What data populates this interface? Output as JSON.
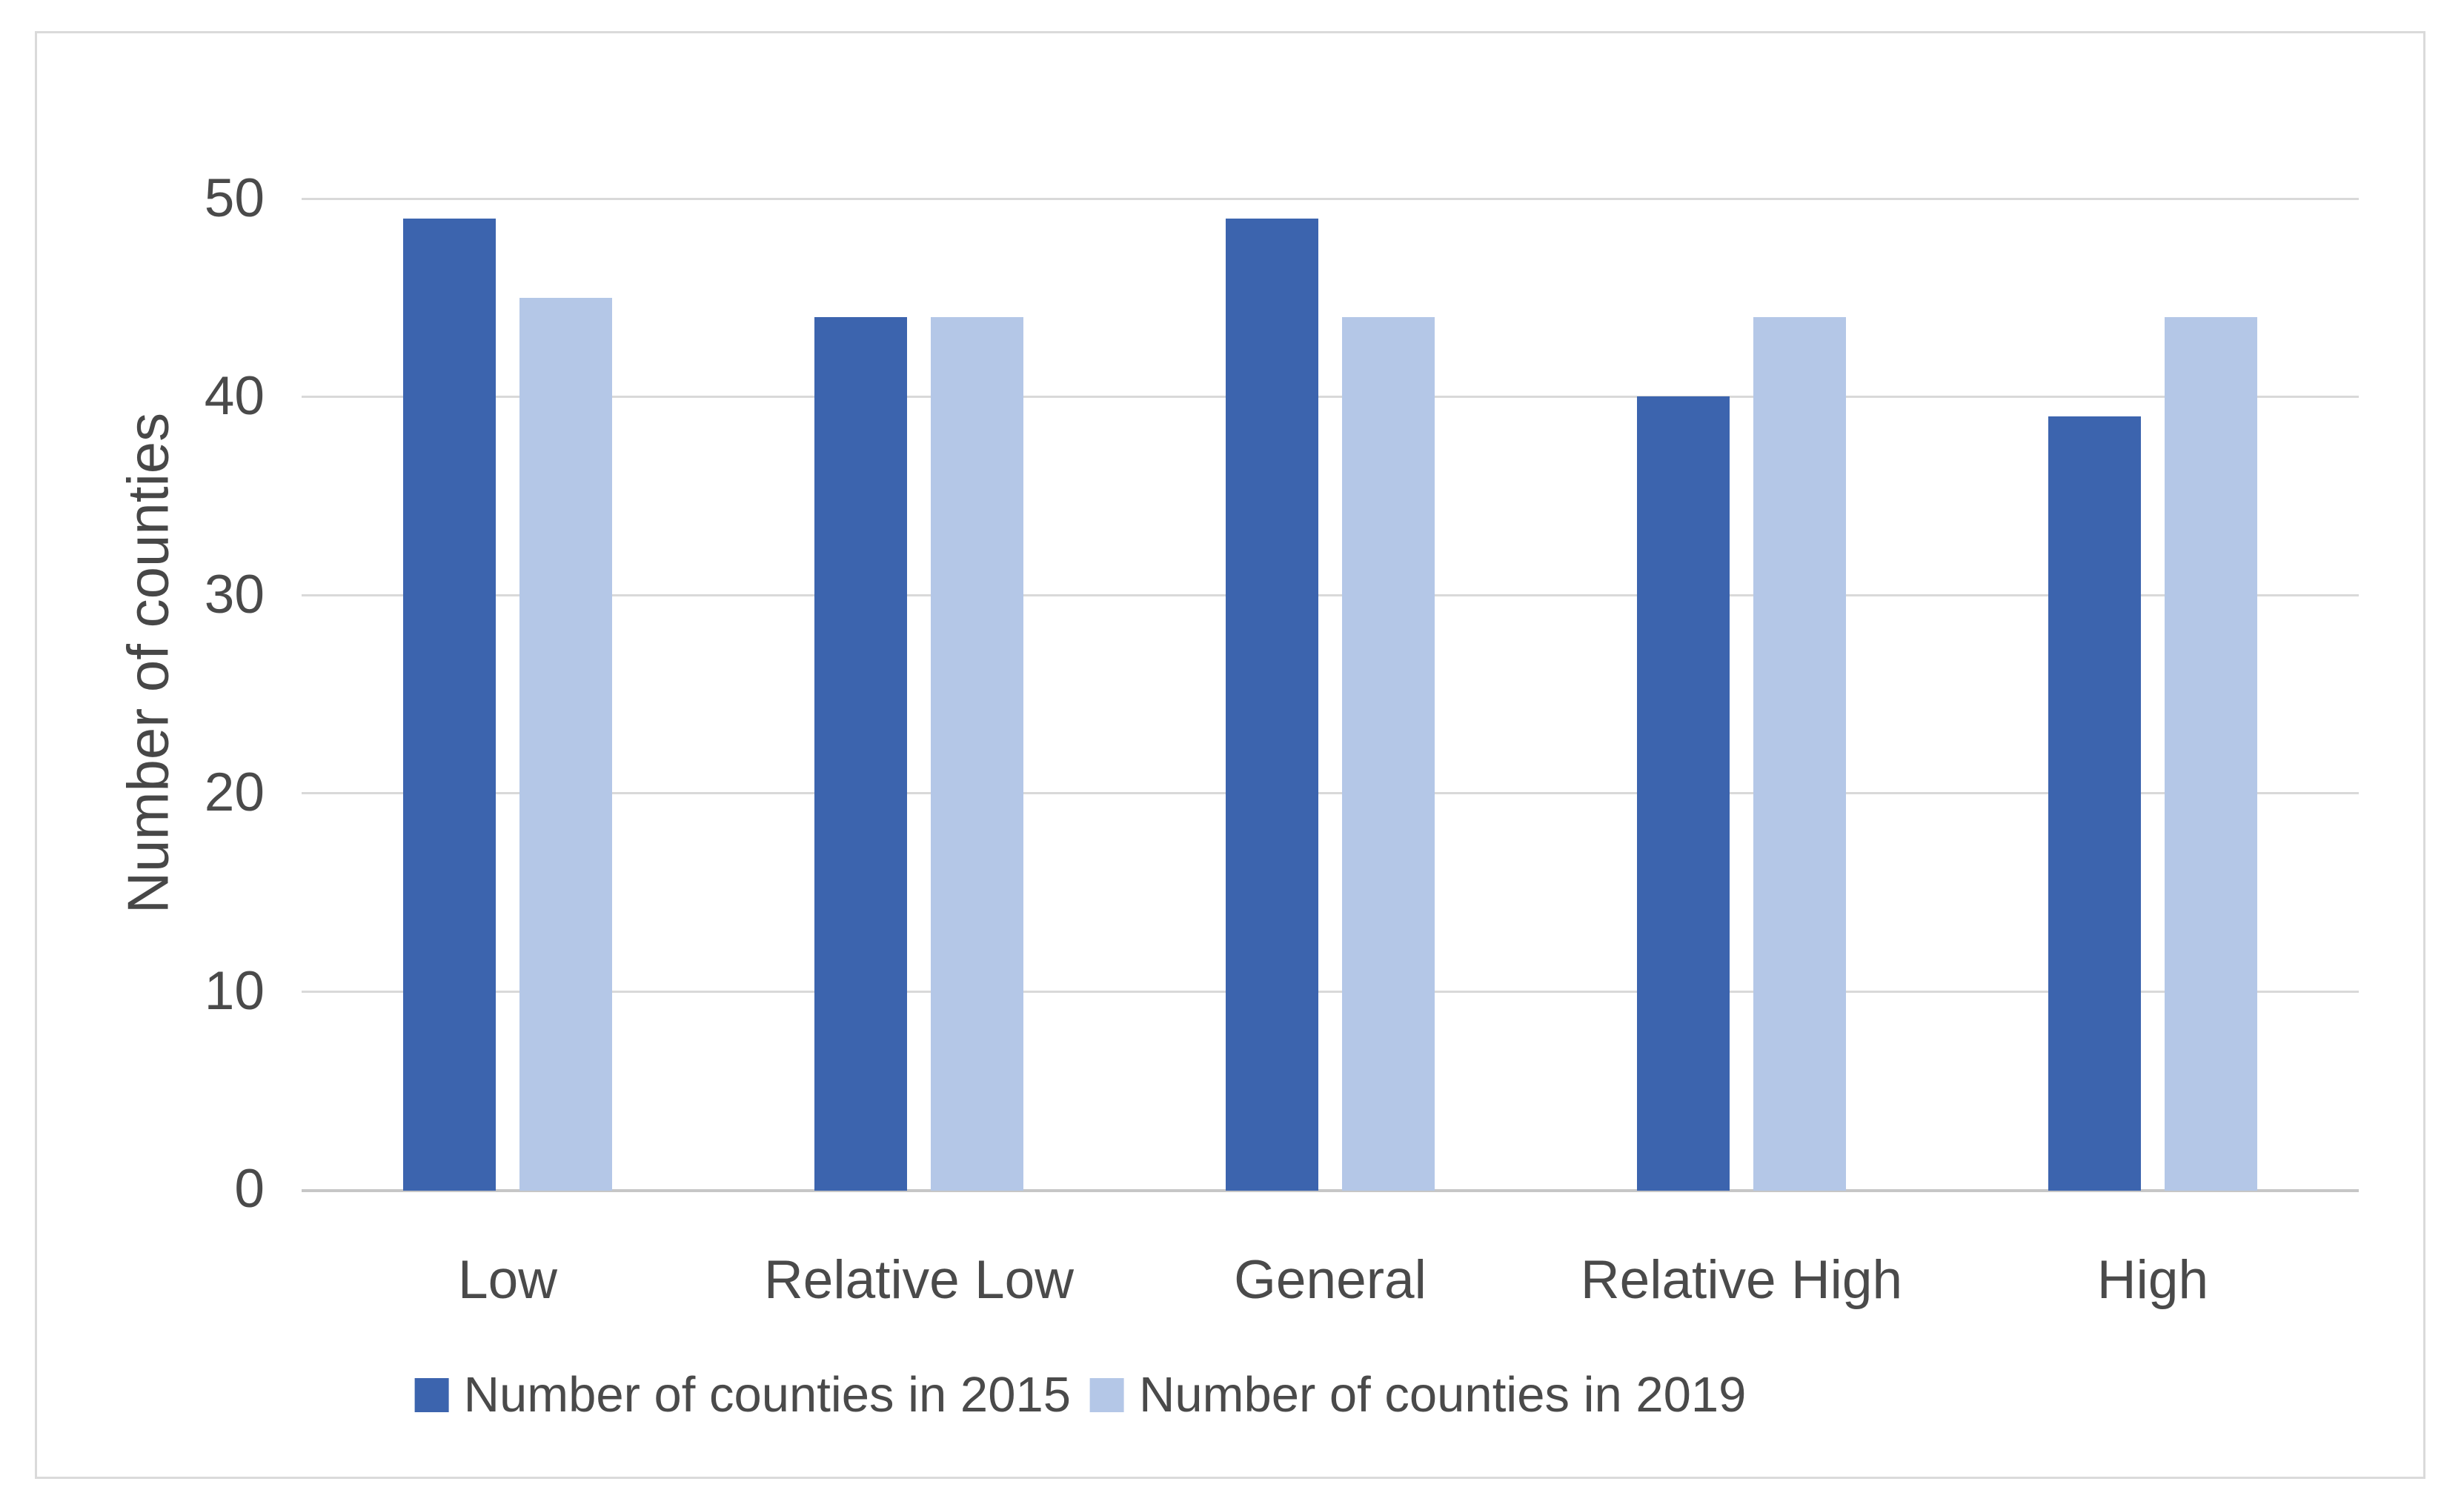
{
  "chart_data": {
    "type": "bar",
    "title": "",
    "categories": [
      "Low",
      "Relative Low",
      "General",
      "Relative High",
      "High"
    ],
    "series": [
      {
        "name": "Number of counties in 2015",
        "color": "#3C64AE",
        "values": [
          49,
          44,
          49,
          40,
          39
        ]
      },
      {
        "name": "Number of counties in 2019",
        "color": "#B4C7E7",
        "values": [
          45,
          44,
          44,
          44,
          44
        ]
      }
    ],
    "xlabel": "",
    "ylabel": "Number of counties",
    "ylim": [
      0,
      50
    ],
    "yticks": [
      0,
      10,
      20,
      30,
      40,
      50
    ],
    "grid": "horizontal",
    "legend_position": "bottom",
    "colors": {
      "gridline": "#D9D9D9",
      "axis_line": "#C6C6C6",
      "tick_label": "#4A4A4A",
      "category_label": "#4A4A4A",
      "legend_label": "#4A4A4A",
      "axis_title": "#474747",
      "frame_border": "#DADADA",
      "background": "#FFFFFF"
    }
  }
}
